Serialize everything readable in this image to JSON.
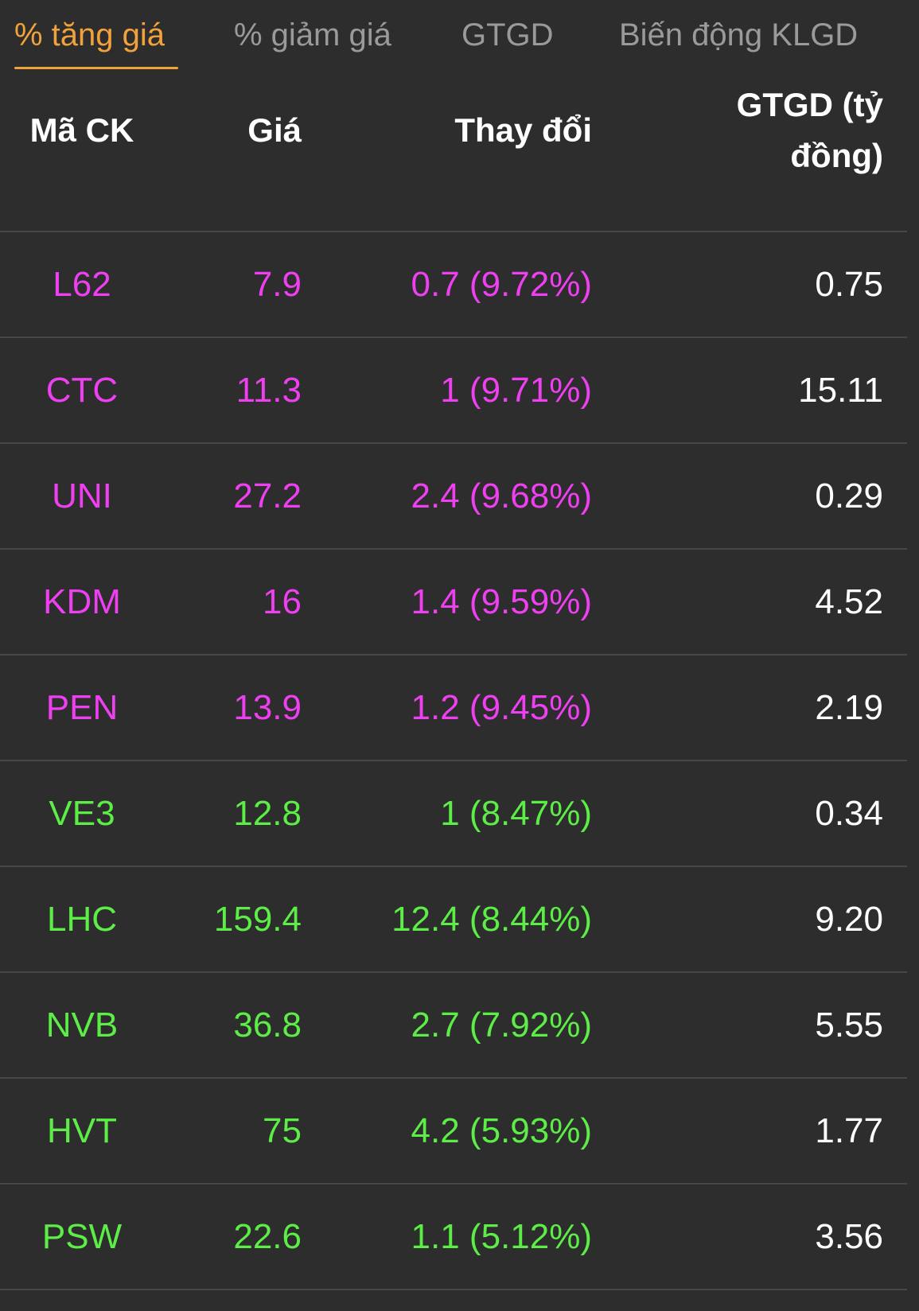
{
  "tabs": [
    {
      "label": "% tăng giá",
      "active": true
    },
    {
      "label": "% giảm giá",
      "active": false
    },
    {
      "label": "GTGD",
      "active": false
    },
    {
      "label": "Biến động KLGD",
      "active": false
    }
  ],
  "colors": {
    "accent": "#f2a23a",
    "ceiling": "#ee3ff0",
    "increase": "#5ced47",
    "background": "#2d2d2d"
  },
  "table": {
    "headers": {
      "code": "Mã CK",
      "price": "Giá",
      "change": "Thay đổi",
      "value_line1": "GTGD (tỷ",
      "value_line2": "đồng)"
    },
    "rows": [
      {
        "code": "L62",
        "price": "7.9",
        "change": "0.7 (9.72%)",
        "value": "0.75",
        "status": "ceiling"
      },
      {
        "code": "CTC",
        "price": "11.3",
        "change": "1 (9.71%)",
        "value": "15.11",
        "status": "ceiling"
      },
      {
        "code": "UNI",
        "price": "27.2",
        "change": "2.4 (9.68%)",
        "value": "0.29",
        "status": "ceiling"
      },
      {
        "code": "KDM",
        "price": "16",
        "change": "1.4 (9.59%)",
        "value": "4.52",
        "status": "ceiling"
      },
      {
        "code": "PEN",
        "price": "13.9",
        "change": "1.2 (9.45%)",
        "value": "2.19",
        "status": "ceiling"
      },
      {
        "code": "VE3",
        "price": "12.8",
        "change": "1 (8.47%)",
        "value": "0.34",
        "status": "increase"
      },
      {
        "code": "LHC",
        "price": "159.4",
        "change": "12.4 (8.44%)",
        "value": "9.20",
        "status": "increase"
      },
      {
        "code": "NVB",
        "price": "36.8",
        "change": "2.7 (7.92%)",
        "value": "5.55",
        "status": "increase"
      },
      {
        "code": "HVT",
        "price": "75",
        "change": "4.2 (5.93%)",
        "value": "1.77",
        "status": "increase"
      },
      {
        "code": "PSW",
        "price": "22.6",
        "change": "1.1 (5.12%)",
        "value": "3.56",
        "status": "increase"
      }
    ]
  }
}
